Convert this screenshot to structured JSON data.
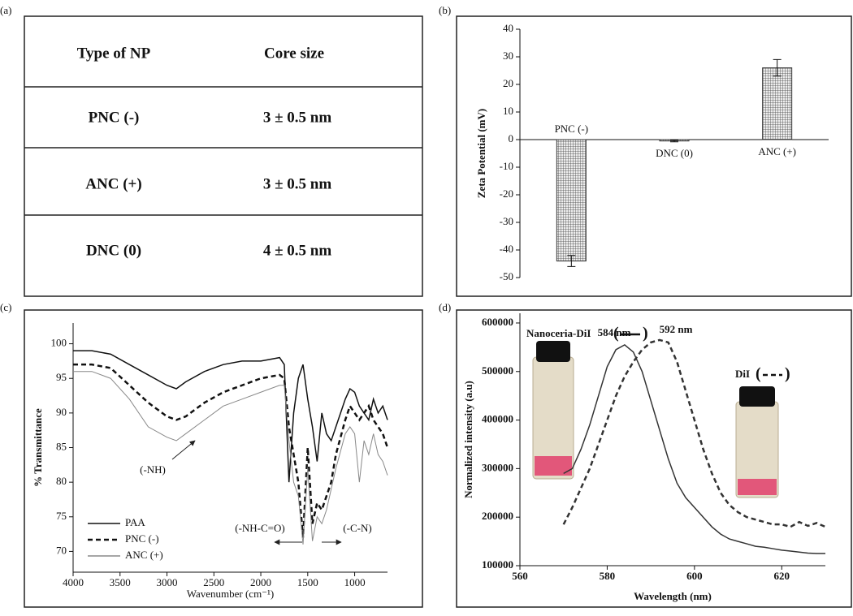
{
  "panel_labels": [
    "(a)",
    "(b)",
    "(c)",
    "(d)"
  ],
  "table": {
    "header": [
      "Type of NP",
      "Core size"
    ],
    "rows": [
      [
        "PNC (-)",
        "3 ± 0.5 nm"
      ],
      [
        "ANC (+)",
        "3 ± 0.5 nm"
      ],
      [
        "DNC (0)",
        "4 ± 0.5 nm"
      ]
    ]
  },
  "chart_data": [
    {
      "type": "bar",
      "ylabel": "Zeta Potential (mV)",
      "categories": [
        "PNC (-)",
        "DNC (0)",
        "ANC (+)"
      ],
      "values": [
        -44,
        -0.5,
        26
      ],
      "errors": [
        2,
        0.3,
        3
      ],
      "color": "#444",
      "ylim": [
        -50,
        40
      ],
      "yticks": [
        -50,
        -40,
        -30,
        -20,
        -10,
        0,
        10,
        20,
        30,
        40
      ]
    },
    {
      "type": "line",
      "xlabel": "Wavenumber (cm⁻¹)",
      "ylabel": "% Transmittance",
      "x": [
        4000,
        3800,
        3600,
        3400,
        3200,
        3000,
        2900,
        2800,
        2600,
        2400,
        2200,
        2000,
        1800,
        1750,
        1700,
        1650,
        1600,
        1550,
        1500,
        1450,
        1400,
        1350,
        1300,
        1250,
        1200,
        1100,
        1050,
        1000,
        950,
        900,
        850,
        800,
        750,
        700,
        650
      ],
      "series": [
        {
          "name": "PAA",
          "color": "#111",
          "dash": "solid",
          "values": [
            99,
            99,
            98.5,
            97,
            95.5,
            94,
            93.5,
            94.5,
            96,
            97,
            97.5,
            97.5,
            98,
            97,
            80,
            90,
            95,
            97,
            92,
            88,
            83,
            90,
            87,
            86,
            88,
            92,
            93.5,
            93,
            91,
            90,
            89,
            92,
            90,
            91,
            89
          ]
        },
        {
          "name": "PNC (-)",
          "color": "#111",
          "dash": "dashed",
          "values": [
            97,
            97,
            96.5,
            94,
            91.5,
            89.5,
            89,
            89.5,
            91.5,
            93,
            94,
            95,
            95.5,
            95,
            88,
            84,
            80,
            72,
            85,
            74,
            77,
            76,
            78,
            80,
            84,
            89,
            91,
            90,
            89,
            90,
            91,
            89,
            88,
            87,
            85
          ]
        },
        {
          "name": "ANC (+)",
          "color": "#888",
          "dash": "solid",
          "values": [
            96,
            96,
            95,
            92,
            88,
            86.5,
            86,
            87,
            89,
            91,
            92,
            93,
            94,
            94,
            86,
            80,
            78,
            71,
            82,
            71.5,
            75,
            74,
            76,
            79,
            82,
            87,
            88,
            87,
            80,
            86,
            84,
            87,
            84,
            83,
            81
          ]
        }
      ],
      "annotations": [
        "(-NH)",
        "(-NH-C=O)",
        "(-C-N)"
      ],
      "legend": "lower left",
      "xlim": [
        4000,
        650
      ],
      "xticks": [
        4000,
        3500,
        3000,
        2500,
        2000,
        1500,
        1000
      ],
      "ylim": [
        67,
        103
      ],
      "yticks": [
        70,
        75,
        80,
        85,
        90,
        95,
        100
      ]
    },
    {
      "type": "line",
      "xlabel": "Wavelength (nm)",
      "ylabel": "Normalized intensity (a.u)",
      "x": [
        570,
        572,
        574,
        576,
        578,
        580,
        582,
        584,
        586,
        588,
        590,
        592,
        594,
        596,
        598,
        600,
        602,
        604,
        606,
        608,
        610,
        612,
        614,
        616,
        618,
        620,
        622,
        624,
        626,
        628,
        630
      ],
      "series": [
        {
          "name": "Nanoceria-DiI",
          "color": "#333",
          "dash": "solid",
          "values": [
            290000,
            300000,
            340000,
            390000,
            450000,
            510000,
            545000,
            555000,
            540000,
            500000,
            440000,
            380000,
            320000,
            270000,
            240000,
            220000,
            200000,
            180000,
            165000,
            155000,
            150000,
            145000,
            140000,
            138000,
            135000,
            132000,
            130000,
            128000,
            126000,
            125000,
            125000
          ]
        },
        {
          "name": "DiI",
          "color": "#333",
          "dash": "dashed",
          "values": [
            185000,
            220000,
            260000,
            300000,
            350000,
            400000,
            450000,
            490000,
            520000,
            545000,
            560000,
            565000,
            560000,
            520000,
            460000,
            400000,
            340000,
            290000,
            250000,
            225000,
            210000,
            200000,
            195000,
            190000,
            185000,
            185000,
            180000,
            190000,
            182000,
            188000,
            180000
          ]
        }
      ],
      "annotations": [
        "584 nm",
        "592 nm"
      ],
      "xlim": [
        560,
        630
      ],
      "xticks": [
        560,
        580,
        600,
        620
      ],
      "ylim": [
        100000,
        620000
      ],
      "yticks": [
        100000,
        200000,
        300000,
        400000,
        500000,
        600000
      ]
    }
  ]
}
